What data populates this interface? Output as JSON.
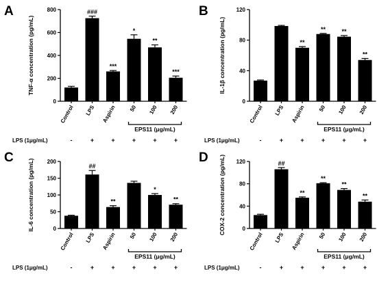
{
  "chart_data": [
    {
      "type": "bar",
      "panel_label": "A",
      "categories": [
        "Control",
        "LPS",
        "Aspirin",
        "50",
        "100",
        "200"
      ],
      "values": [
        120,
        725,
        260,
        545,
        470,
        205
      ],
      "errors": [
        10,
        18,
        8,
        35,
        22,
        15
      ],
      "significance": [
        "",
        "###",
        "***",
        "*",
        "**",
        "***"
      ],
      "ylabel": "TNF-α concentration (pg/mL)",
      "ylim": [
        0,
        800
      ],
      "yticks": [
        0,
        200,
        400,
        600,
        800
      ],
      "group_label": "EPS11 (μg/mL)",
      "lps_row_label": "LPS (1μg/mL)",
      "lps_signs": [
        "-",
        "+",
        "+",
        "+",
        "+",
        "+"
      ]
    },
    {
      "type": "bar",
      "panel_label": "B",
      "categories": [
        "Control",
        "LPS",
        "Aspirin",
        "50",
        "100",
        "200"
      ],
      "values": [
        27,
        98.5,
        70,
        88,
        84.5,
        54
      ],
      "errors": [
        0.8,
        0.8,
        1.5,
        0.8,
        1.5,
        2
      ],
      "significance": [
        "",
        "",
        "**",
        "**",
        "**",
        "**"
      ],
      "ylabel": "IL-1β concentration (pg/mL)",
      "ylim": [
        0,
        120
      ],
      "yticks": [
        0,
        40,
        80,
        120
      ],
      "group_label": "EPS11 (μg/mL)",
      "lps_row_label": "LPS (1μg/mL)",
      "lps_signs": [
        "-",
        "+",
        "+",
        "+",
        "+",
        "+"
      ]
    },
    {
      "type": "bar",
      "panel_label": "C",
      "categories": [
        "Control",
        "LPS",
        "Aspirin",
        "50",
        "100",
        "200"
      ],
      "values": [
        38,
        161,
        64,
        136,
        100,
        71
      ],
      "errors": [
        1.5,
        12,
        4,
        5,
        4,
        3
      ],
      "significance": [
        "",
        "##",
        "**",
        "",
        "*",
        "**"
      ],
      "ylabel": "IL-6 concentration (pg/mL)",
      "ylim": [
        0,
        200
      ],
      "yticks": [
        0,
        50,
        100,
        150,
        200
      ],
      "group_label": "EPS11 (μg/mL)",
      "lps_row_label": "LPS (1μg/mL)",
      "lps_signs": [
        "-",
        "+",
        "+",
        "+",
        "+",
        "+"
      ]
    },
    {
      "type": "bar",
      "panel_label": "D",
      "categories": [
        "Control",
        "LPS",
        "Aspirin",
        "50",
        "100",
        "200"
      ],
      "values": [
        24,
        106,
        55,
        81,
        69,
        48
      ],
      "errors": [
        1.5,
        3,
        1.5,
        1,
        2.5,
        3
      ],
      "significance": [
        "",
        "##",
        "**",
        "**",
        "**",
        "**"
      ],
      "ylabel": "COX-2 concentration (pg/mL)",
      "ylim": [
        0,
        120
      ],
      "yticks": [
        0,
        40,
        80,
        120
      ],
      "group_label": "EPS11 (μg/mL)",
      "lps_row_label": "LPS (1μg/mL)",
      "lps_signs": [
        "-",
        "+",
        "+",
        "+",
        "+",
        "+"
      ]
    }
  ],
  "colors": {
    "bar": "#000000",
    "axis": "#000000",
    "background": "#ffffff"
  }
}
